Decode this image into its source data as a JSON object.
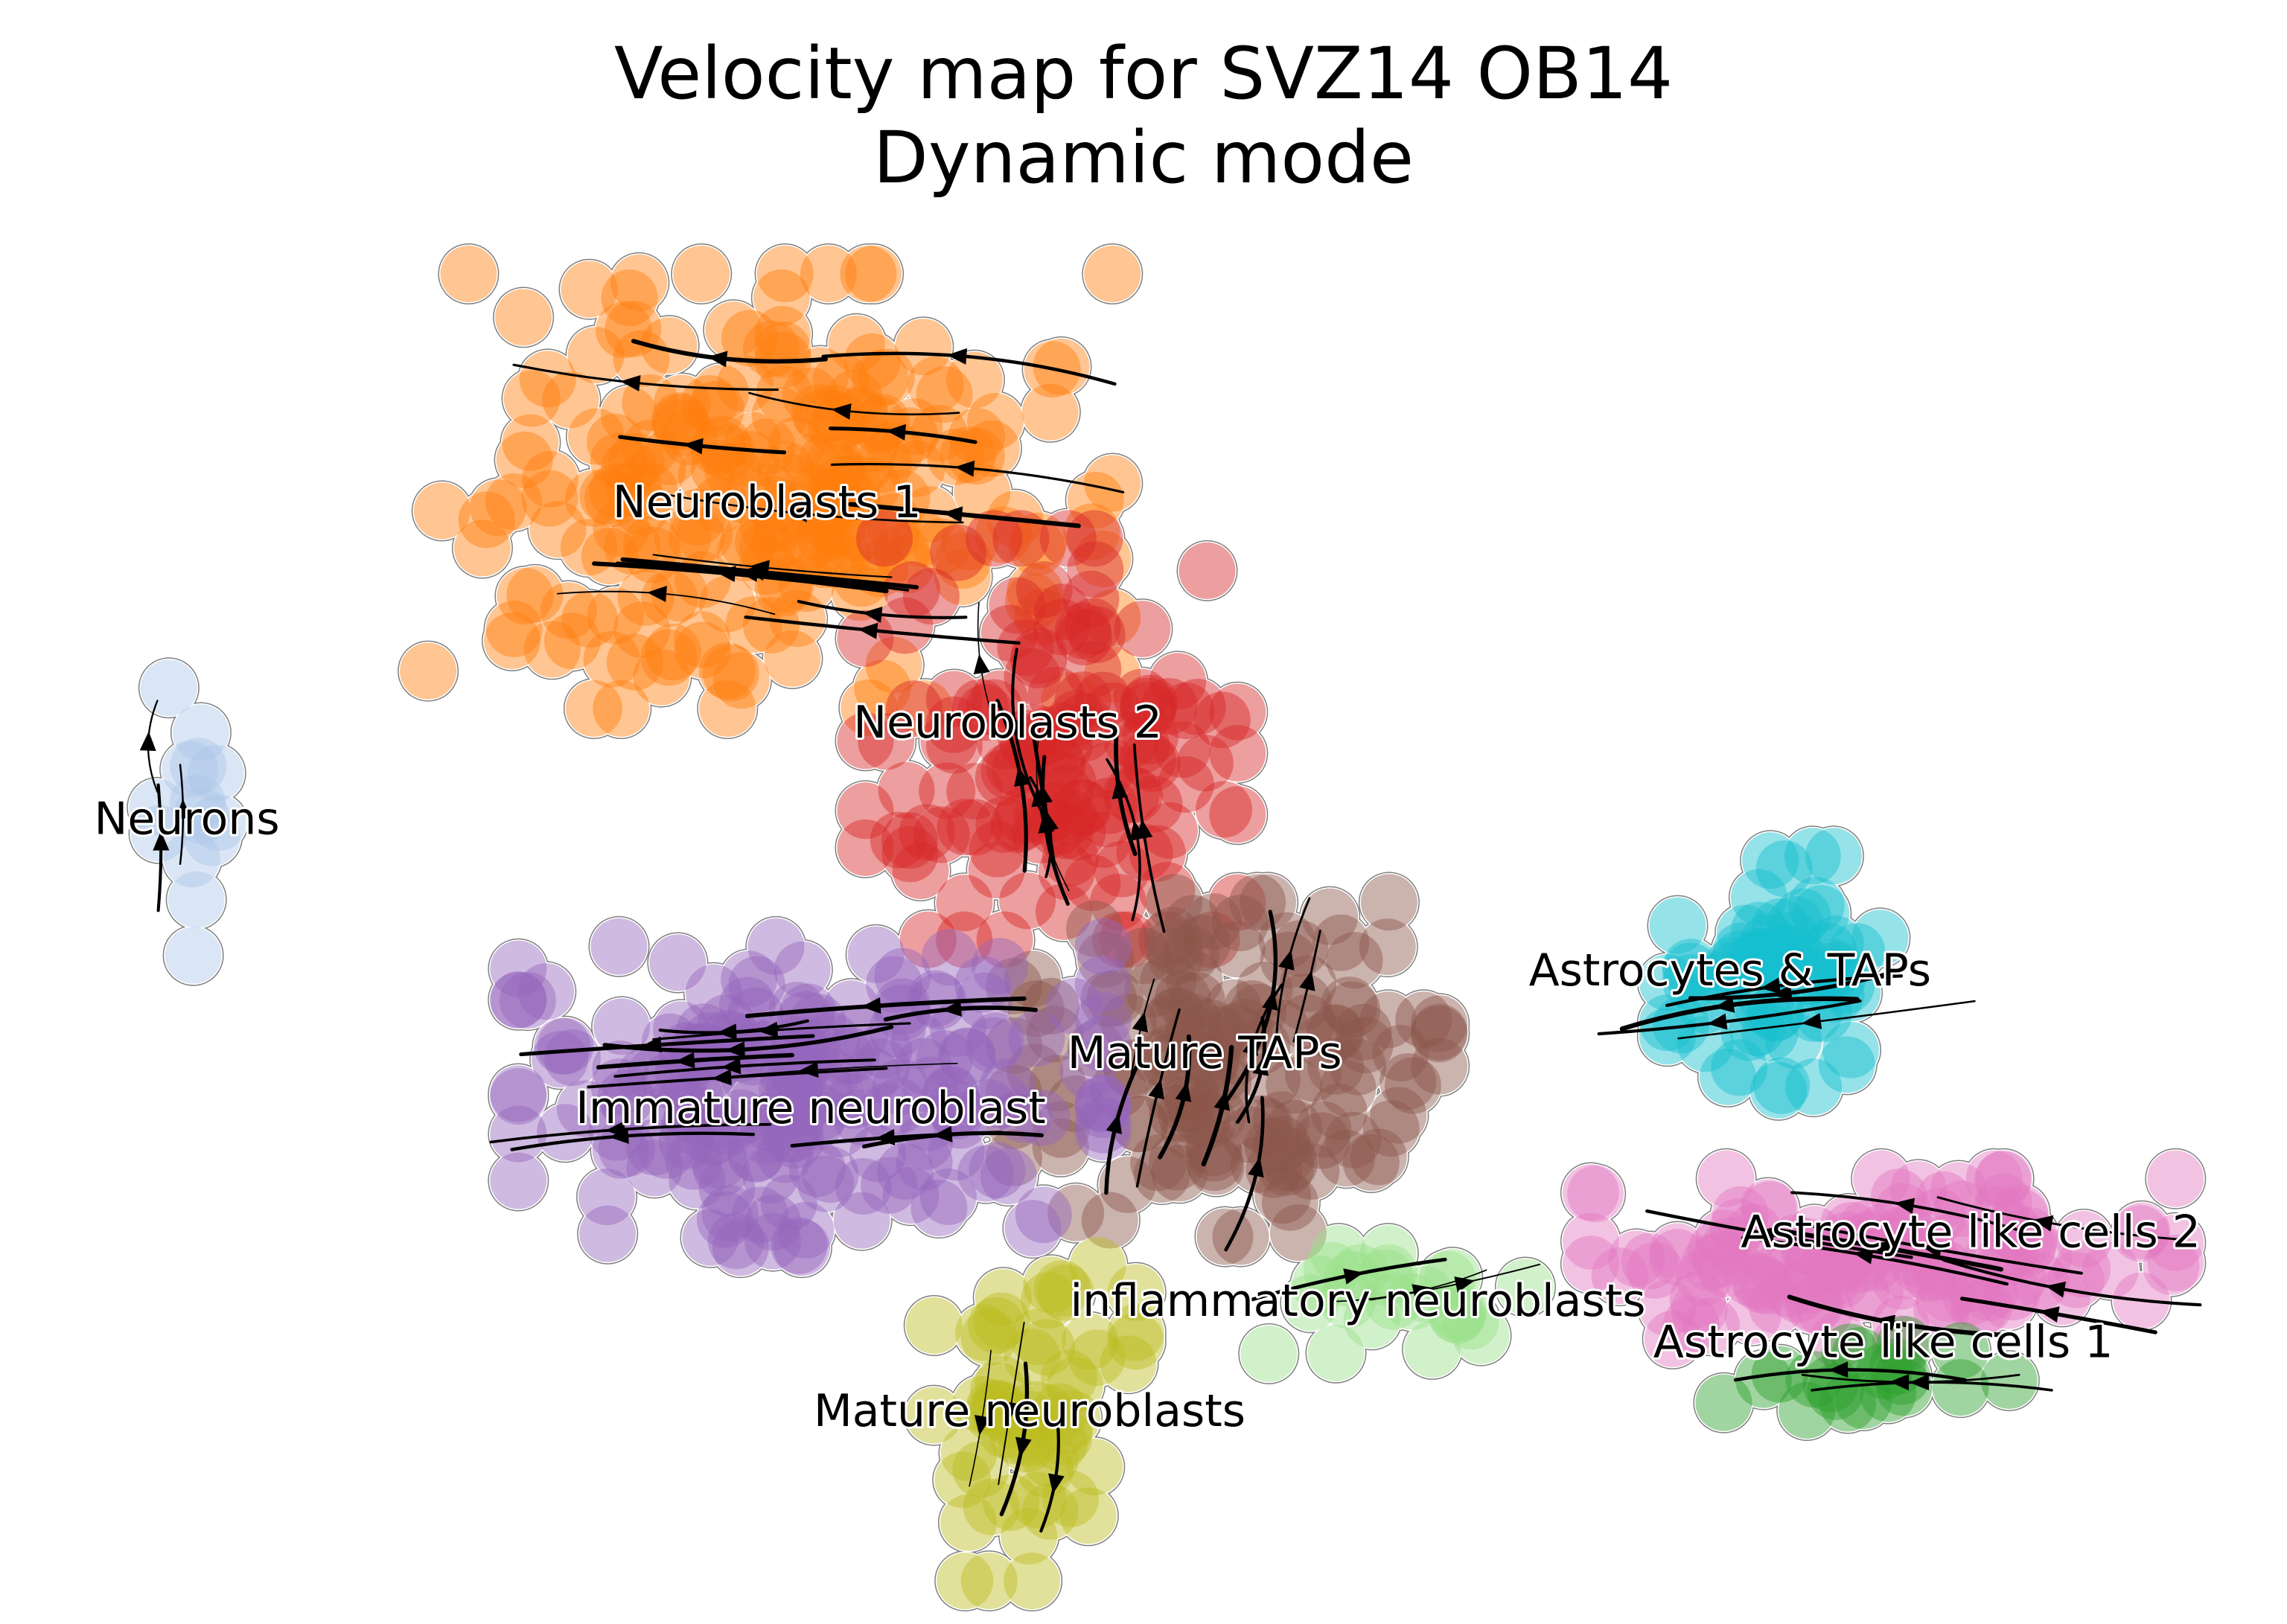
{
  "chart_data": {
    "type": "scatter",
    "title": "Velocity map for SVZ14 OB14",
    "subtitle": "Dynamic mode",
    "xlabel": "",
    "ylabel": "",
    "axes_visible": false,
    "grid": false,
    "legend": "on data",
    "embedding_range": {
      "x": [
        0,
        100
      ],
      "y": [
        0,
        100
      ]
    },
    "clusters": [
      {
        "label": "Neurons",
        "color": "#aec7e8",
        "center": [
          6.5,
          56
        ],
        "spread": [
          1.8,
          8
        ],
        "n": 14,
        "label_pos": [
          6.5,
          56
        ]
      },
      {
        "label": "Neuroblasts 1",
        "color": "#ff7f0e",
        "center": [
          33,
          80
        ],
        "spread": [
          13,
          13
        ],
        "n": 230,
        "label_pos": [
          33,
          79
        ]
      },
      {
        "label": "Neuroblasts 2",
        "color": "#d62728",
        "center": [
          46,
          62
        ],
        "spread": [
          7,
          12
        ],
        "n": 140,
        "label_pos": [
          44,
          63
        ]
      },
      {
        "label": "Mature TAPs",
        "color": "#8c564b",
        "center": [
          54,
          38
        ],
        "spread": [
          8,
          10
        ],
        "n": 150,
        "label_pos": [
          53,
          39
        ]
      },
      {
        "label": "Immature neuroblast",
        "color": "#9467bd",
        "center": [
          35,
          36
        ],
        "spread": [
          11,
          9
        ],
        "n": 200,
        "label_pos": [
          35,
          35
        ]
      },
      {
        "label": "inflammatory neuroblasts",
        "color": "#98df8a",
        "center": [
          62,
          21
        ],
        "spread": [
          5,
          3
        ],
        "n": 25,
        "label_pos": [
          60,
          21
        ]
      },
      {
        "label": "Mature neuroblasts",
        "color": "#bcbd22",
        "center": [
          45,
          13
        ],
        "spread": [
          4,
          10
        ],
        "n": 60,
        "label_pos": [
          45,
          13
        ]
      },
      {
        "label": "Astrocytes & TAPs",
        "color": "#17becf",
        "center": [
          79,
          45
        ],
        "spread": [
          4,
          7
        ],
        "n": 70,
        "label_pos": [
          77,
          45
        ]
      },
      {
        "label": "Astrocyte like cells 2",
        "color": "#e377c2",
        "center": [
          84,
          24
        ],
        "spread": [
          11,
          5
        ],
        "n": 130,
        "label_pos": [
          88,
          26
        ]
      },
      {
        "label": "Astrocyte like cells 1",
        "color": "#2ca02c",
        "center": [
          84,
          15
        ],
        "spread": [
          6,
          2.5
        ],
        "n": 20,
        "label_pos": [
          84,
          18
        ]
      }
    ]
  }
}
